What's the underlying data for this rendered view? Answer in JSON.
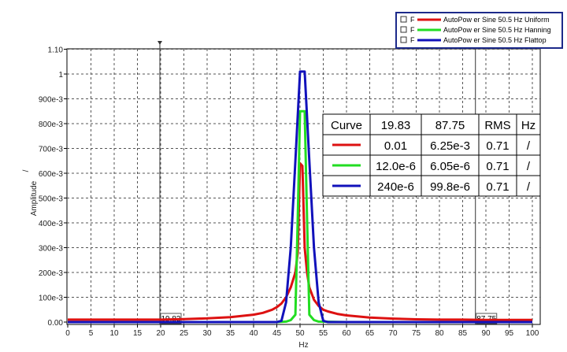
{
  "chart_data": {
    "type": "line",
    "xlabel": "Hz",
    "ylabel": "Amplitude",
    "ylabel_unit": "/",
    "xlim": [
      0,
      101
    ],
    "ylim": [
      0,
      1.1
    ],
    "x_ticks": [
      0,
      5,
      10,
      15,
      20,
      25,
      30,
      35,
      40,
      45,
      50,
      55,
      60,
      65,
      70,
      75,
      80,
      85,
      90,
      95,
      100
    ],
    "y_ticks": [
      {
        "value": 0.0,
        "label": "0.00"
      },
      {
        "value": 0.1,
        "label": "100e-3"
      },
      {
        "value": 0.2,
        "label": "200e-3"
      },
      {
        "value": 0.3,
        "label": "300e-3"
      },
      {
        "value": 0.4,
        "label": "400e-3"
      },
      {
        "value": 0.5,
        "label": "500e-3"
      },
      {
        "value": 0.6,
        "label": "600e-3"
      },
      {
        "value": 0.7,
        "label": "700e-3"
      },
      {
        "value": 0.8,
        "label": "800e-3"
      },
      {
        "value": 0.9,
        "label": "900e-3"
      },
      {
        "value": 1.0,
        "label": "1"
      },
      {
        "value": 1.1,
        "label": "1.10"
      }
    ],
    "grid": true,
    "cursors": [
      {
        "x": 19.83,
        "label": "19.83"
      },
      {
        "x": 87.75,
        "label": "87.75"
      }
    ],
    "series": [
      {
        "name": "AutoPower Sine 50.5 Hz  Uniform",
        "color": "#dd1111",
        "x": [
          0,
          5,
          10,
          15,
          20,
          25,
          30,
          35,
          40,
          42,
          44,
          45,
          46,
          47,
          48,
          49,
          49.5,
          50,
          50.5,
          51,
          51.5,
          52,
          53,
          54,
          55,
          56,
          58,
          60,
          65,
          70,
          75,
          80,
          85,
          90,
          95,
          100
        ],
        "y": [
          0.01,
          0.01,
          0.01,
          0.01,
          0.01,
          0.012,
          0.015,
          0.02,
          0.03,
          0.037,
          0.05,
          0.06,
          0.075,
          0.1,
          0.14,
          0.2,
          0.28,
          0.64,
          0.63,
          0.3,
          0.2,
          0.14,
          0.09,
          0.065,
          0.05,
          0.043,
          0.033,
          0.027,
          0.018,
          0.014,
          0.011,
          0.01,
          0.01,
          0.009,
          0.009,
          0.009
        ]
      },
      {
        "name": "AutoPower Sine 50.5 Hz  Hanning",
        "color": "#22dd22",
        "x": [
          0,
          40,
          45,
          47,
          48,
          49,
          49.5,
          50,
          51,
          51.5,
          52,
          53,
          54,
          60,
          100
        ],
        "y": [
          0.0,
          0.0,
          0.0,
          0.002,
          0.008,
          0.03,
          0.42,
          0.85,
          0.85,
          0.42,
          0.03,
          0.008,
          0.002,
          0.0,
          0.0
        ]
      },
      {
        "name": "AutoPower Sine 50.5 Hz  Flattop",
        "color": "#1111bb",
        "x": [
          0,
          40,
          45,
          46,
          47,
          48,
          49,
          50,
          51,
          52,
          53,
          54,
          55,
          56,
          60,
          100
        ],
        "y": [
          0.0,
          0.0,
          0.0,
          0.005,
          0.08,
          0.3,
          0.65,
          1.01,
          1.01,
          0.65,
          0.3,
          0.08,
          0.005,
          0.0,
          0.0,
          0.0
        ]
      }
    ],
    "legend": {
      "placement": "top-right",
      "entries": [
        {
          "checkbox": "F",
          "label": "AutoPow er Sine 50.5 Hz  Uniform",
          "color": "#dd1111"
        },
        {
          "checkbox": "F",
          "label": "AutoPow er Sine 50.5 Hz  Hanning",
          "color": "#22dd22"
        },
        {
          "checkbox": "F",
          "label": "AutoPow er Sine 50.5 Hz  Flattop",
          "color": "#1111bb"
        }
      ]
    },
    "cursor_table": {
      "header": [
        "Curve",
        "19.83",
        "87.75",
        "RMS",
        "Hz"
      ],
      "rows": [
        {
          "color": "#dd1111",
          "cells": [
            "0.01",
            "6.25e-3",
            "0.71",
            "/"
          ]
        },
        {
          "color": "#22dd22",
          "cells": [
            "12.0e-6",
            "6.05e-6",
            "0.71",
            "/"
          ]
        },
        {
          "color": "#1111bb",
          "cells": [
            "240e-6",
            "99.8e-6",
            "0.71",
            "/"
          ]
        }
      ]
    }
  }
}
